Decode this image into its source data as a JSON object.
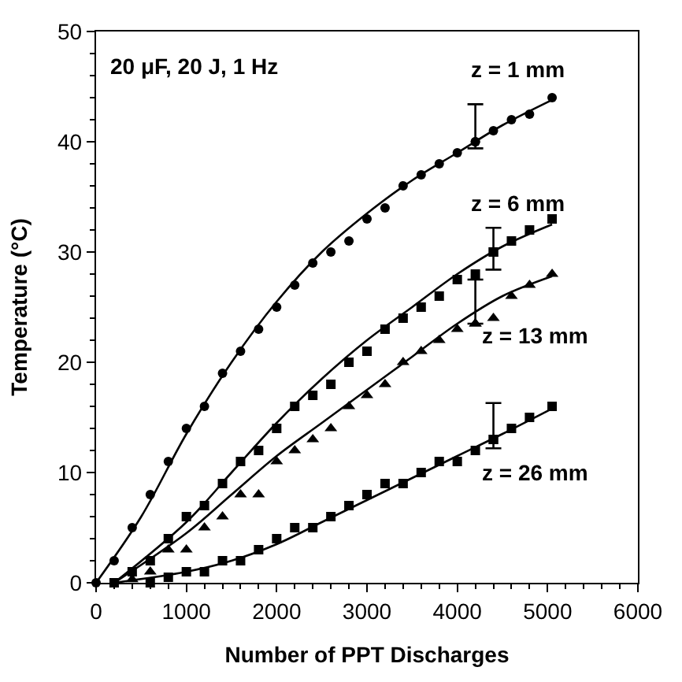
{
  "chart_data": {
    "type": "scatter",
    "xlabel": "Number of PPT Discharges",
    "ylabel": "Temperature (°C)",
    "xlim": [
      0,
      6000
    ],
    "xticks": [
      0,
      1000,
      2000,
      3000,
      4000,
      5000,
      6000
    ],
    "ylim": [
      0,
      50
    ],
    "yticks": [
      0,
      10,
      20,
      30,
      40,
      50
    ],
    "annotations": [
      "20 μF, 20 J, 1 Hz",
      "z = 1 mm",
      "z = 6 mm",
      "z = 13 mm",
      "z = 26 mm"
    ],
    "series": [
      {
        "marker": "circle",
        "color": "#000000",
        "x": [
          0,
          200,
          400,
          600,
          800,
          1000,
          1200,
          1400,
          1600,
          1800,
          2000,
          2200,
          2400,
          2600,
          2800,
          3000,
          3200,
          3400,
          3600,
          3800,
          4000,
          4200,
          4400,
          4600,
          4800,
          5050
        ],
        "values": [
          0,
          2,
          5,
          8,
          11,
          14,
          16,
          19,
          21,
          23,
          25,
          27,
          29,
          30,
          31,
          33,
          34,
          36,
          37,
          38,
          39,
          40,
          41,
          42,
          42.5,
          44
        ],
        "errors": [
          null,
          null,
          null,
          null,
          null,
          null,
          null,
          null,
          null,
          null,
          null,
          null,
          null,
          null,
          null,
          null,
          null,
          null,
          null,
          null,
          null,
          [
            39.4,
            43.4
          ],
          null,
          null,
          null,
          null
        ]
      },
      {
        "marker": "square",
        "color": "#000000",
        "x": [
          200,
          400,
          600,
          800,
          1000,
          1200,
          1400,
          1600,
          1800,
          2000,
          2200,
          2400,
          2600,
          2800,
          3000,
          3200,
          3400,
          3600,
          3800,
          4000,
          4200,
          4400,
          4600,
          4800,
          5050
        ],
        "values": [
          0,
          1,
          2,
          4,
          6,
          7,
          9,
          11,
          12,
          14,
          16,
          17,
          18,
          20,
          21,
          23,
          24,
          25,
          26,
          27.5,
          28,
          30,
          31,
          32,
          33
        ],
        "errors": [
          null,
          null,
          null,
          null,
          null,
          null,
          null,
          null,
          null,
          null,
          null,
          null,
          null,
          null,
          null,
          null,
          null,
          null,
          null,
          null,
          null,
          [
            28.4,
            32.2
          ],
          null,
          null,
          null
        ]
      },
      {
        "marker": "triangle",
        "color": "#000000",
        "x": [
          400,
          600,
          800,
          1000,
          1200,
          1400,
          1600,
          1800,
          2000,
          2200,
          2400,
          2600,
          2800,
          3000,
          3200,
          3400,
          3600,
          3800,
          4000,
          4200,
          4400,
          4600,
          4800,
          5050
        ],
        "values": [
          0.3,
          1,
          3,
          3,
          5,
          6,
          8,
          8,
          11,
          12,
          13,
          14,
          16,
          17,
          18,
          20,
          21,
          22,
          23,
          23.5,
          24,
          26,
          27,
          28
        ],
        "errors": [
          null,
          null,
          null,
          null,
          null,
          null,
          null,
          null,
          null,
          null,
          null,
          null,
          null,
          null,
          null,
          null,
          null,
          null,
          null,
          [
            23.5,
            27.5
          ],
          null,
          null,
          null,
          null
        ]
      },
      {
        "marker": "square",
        "color": "#000000",
        "x": [
          600,
          800,
          1000,
          1200,
          1400,
          1600,
          1800,
          2000,
          2200,
          2400,
          2600,
          2800,
          3000,
          3200,
          3400,
          3600,
          3800,
          4000,
          4200,
          4400,
          4600,
          4800,
          5050
        ],
        "values": [
          0,
          0.5,
          1,
          1,
          2,
          2,
          3,
          4,
          5,
          5,
          6,
          7,
          8,
          9,
          9,
          10,
          11,
          11,
          12,
          13,
          14,
          15,
          16
        ],
        "errors": [
          null,
          null,
          null,
          null,
          null,
          null,
          null,
          null,
          null,
          null,
          null,
          null,
          null,
          null,
          null,
          null,
          null,
          null,
          null,
          [
            12.2,
            16.3
          ],
          null,
          null,
          null
        ]
      },
      {
        "type": "line",
        "marker": "none",
        "color": "#000000",
        "x": [
          0,
          500,
          1000,
          1500,
          2000,
          2500,
          3000,
          3500,
          4000,
          4500,
          5050
        ],
        "values": [
          0,
          6,
          13.5,
          20,
          25.5,
          30,
          33.5,
          36.5,
          39,
          41.5,
          43.8
        ]
      },
      {
        "type": "line",
        "marker": "none",
        "color": "#000000",
        "x": [
          200,
          1000,
          1500,
          2000,
          2500,
          3000,
          3500,
          4000,
          4500,
          5050
        ],
        "values": [
          0,
          5.5,
          10,
          14.5,
          18.5,
          22,
          25,
          28,
          30.5,
          32.5
        ]
      },
      {
        "type": "line",
        "marker": "none",
        "color": "#000000",
        "x": [
          200,
          1000,
          1500,
          2000,
          2500,
          3000,
          3500,
          4000,
          4500,
          5050
        ],
        "values": [
          0,
          4.5,
          8,
          11.5,
          14.5,
          17.5,
          20.5,
          23.5,
          26,
          27.8
        ]
      },
      {
        "type": "line",
        "marker": "none",
        "color": "#000000",
        "x": [
          200,
          1000,
          1500,
          2000,
          2500,
          3000,
          3500,
          4000,
          4500,
          5050
        ],
        "values": [
          0,
          1,
          2,
          3.5,
          5.5,
          7.5,
          9.5,
          11.5,
          13.5,
          15.8
        ]
      }
    ]
  }
}
